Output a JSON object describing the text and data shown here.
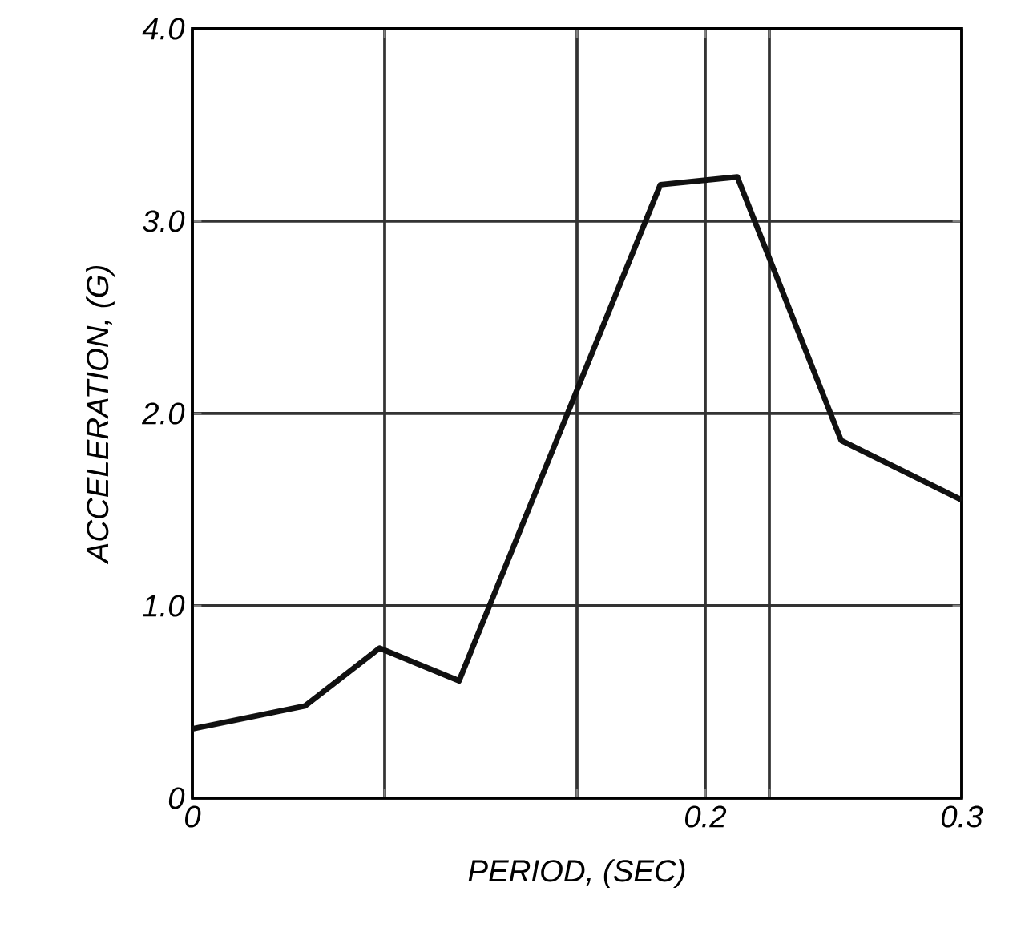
{
  "chart_data": {
    "type": "line",
    "xlabel": "PERIOD, (SEC)",
    "ylabel": "ACCELERATION, (G)",
    "x": [
      0,
      0.044,
      0.073,
      0.104,
      0.1825,
      0.2125,
      0.253,
      0.3
    ],
    "series": [
      {
        "color": "#111111",
        "values": [
          0.36,
          0.48,
          0.78,
          0.61,
          3.19,
          3.23,
          1.86,
          1.55
        ]
      }
    ],
    "xlim": [
      0,
      0.3
    ],
    "ylim": [
      0,
      4
    ],
    "xticks": [
      0,
      {
        "value": 0.075,
        "label": null
      },
      {
        "value": 0.15,
        "label": null
      },
      0.2,
      {
        "value": 0.225,
        "label": null
      },
      0.3
    ],
    "yticks": [
      0,
      {
        "value": 1,
        "label": "1.0"
      },
      {
        "value": 2,
        "label": "2.0"
      },
      {
        "value": 3,
        "label": "3.0"
      },
      {
        "value": 4,
        "label": "4.0"
      }
    ],
    "grid": true,
    "marker": "none",
    "line_style": "solid"
  }
}
